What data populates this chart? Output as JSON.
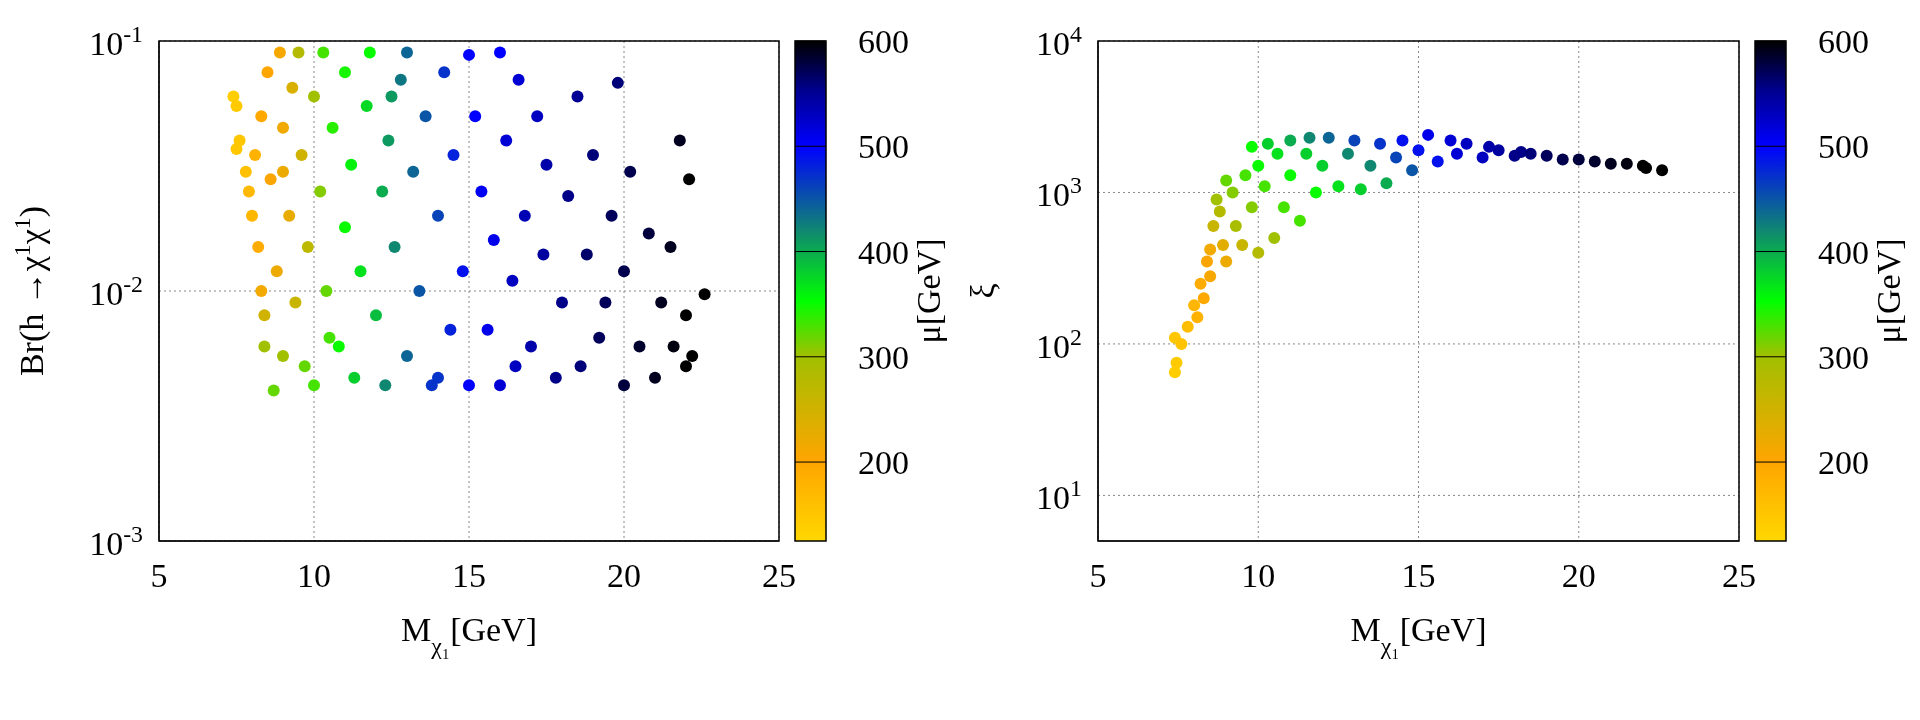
{
  "chart_data": [
    {
      "type": "scatter",
      "xlabel": "M$_{χ₁}$[GeV]",
      "ylabel": "Br(h →χ$^{1}$χ$^{1}$)",
      "clabel": "μ[GeV]",
      "xlim": [
        5,
        25
      ],
      "xticks": [
        5,
        10,
        15,
        20,
        25
      ],
      "ylim": [
        0.001,
        0.1
      ],
      "yticks": [
        {
          "value": 0.001,
          "label": "10$^{-3}$"
        },
        {
          "value": 0.01,
          "label": "10$^{-2}$"
        },
        {
          "value": 0.1,
          "label": "10$^{-1}$"
        }
      ],
      "log": "y",
      "grid": true,
      "marker": "circle",
      "clim": [
        125,
        600
      ],
      "cticks": [
        200,
        300,
        400,
        500,
        600
      ],
      "series": [
        {
          "x": [
            7.4,
            7.5,
            7.5,
            7.6,
            7.8,
            7.9,
            8.0,
            8.1,
            8.2,
            8.3,
            8.3,
            8.4,
            8.4,
            8.5,
            8.6,
            8.7,
            8.8,
            8.9,
            9.0,
            9.0,
            9.0,
            9.2,
            9.3,
            9.4,
            9.5,
            9.6,
            9.7,
            9.8,
            10.0,
            10.0,
            10.2,
            10.3,
            10.4,
            10.5,
            10.6,
            10.8,
            11.0,
            11.0,
            11.2,
            11.3,
            11.5,
            11.7,
            11.8,
            12.0,
            12.2,
            12.3,
            12.4,
            12.5,
            12.6,
            12.8,
            13.0,
            13.0,
            13.2,
            13.4,
            13.6,
            13.8,
            14.0,
            14.0,
            14.2,
            14.4,
            14.5,
            14.8,
            15.0,
            15.0,
            15.2,
            15.4,
            15.6,
            15.8,
            16.0,
            16.0,
            16.2,
            16.4,
            16.5,
            16.6,
            16.8,
            17.0,
            17.2,
            17.4,
            17.5,
            17.8,
            18.0,
            18.2,
            18.5,
            18.6,
            18.8,
            19.0,
            19.2,
            19.4,
            19.6,
            19.8,
            20.0,
            20.0,
            20.2,
            20.5,
            20.8,
            21.0,
            21.2,
            21.5,
            21.6,
            21.8,
            22.0,
            22.0,
            22.1,
            22.2,
            22.6
          ],
          "values": [
            0.06,
            0.055,
            0.037,
            0.04,
            0.03,
            0.025,
            0.02,
            0.035,
            0.015,
            0.05,
            0.01,
            0.008,
            0.006,
            0.075,
            0.028,
            0.004,
            0.012,
            0.09,
            0.045,
            0.0055,
            0.03,
            0.02,
            0.065,
            0.009,
            0.09,
            0.035,
            0.005,
            0.015,
            0.06,
            0.0042,
            0.025,
            0.09,
            0.01,
            0.0065,
            0.045,
            0.006,
            0.018,
            0.075,
            0.032,
            0.0045,
            0.012,
            0.055,
            0.09,
            0.008,
            0.025,
            0.0042,
            0.04,
            0.06,
            0.015,
            0.07,
            0.0055,
            0.09,
            0.03,
            0.01,
            0.05,
            0.0042,
            0.02,
            0.0045,
            0.075,
            0.007,
            0.035,
            0.012,
            0.088,
            0.0042,
            0.05,
            0.025,
            0.007,
            0.016,
            0.09,
            0.0042,
            0.04,
            0.011,
            0.005,
            0.07,
            0.02,
            0.006,
            0.05,
            0.014,
            0.032,
            0.0045,
            0.009,
            0.024,
            0.06,
            0.005,
            0.014,
            0.035,
            0.0065,
            0.009,
            0.02,
            0.068,
            0.0042,
            0.012,
            0.03,
            0.006,
            0.017,
            0.0045,
            0.009,
            0.015,
            0.006,
            0.04,
            0.005,
            0.008,
            0.028,
            0.0055,
            0.0097
          ],
          "cvalues": [
            140,
            145,
            150,
            150,
            160,
            170,
            175,
            180,
            190,
            195,
            215,
            250,
            300,
            200,
            205,
            320,
            220,
            210,
            215,
            300,
            220,
            225,
            240,
            260,
            280,
            250,
            320,
            270,
            300,
            330,
            310,
            330,
            320,
            330,
            340,
            350,
            350,
            345,
            360,
            380,
            370,
            375,
            350,
            390,
            400,
            420,
            410,
            410,
            420,
            430,
            440,
            440,
            440,
            450,
            450,
            470,
            460,
            470,
            470,
            480,
            480,
            490,
            500,
            500,
            500,
            505,
            510,
            510,
            500,
            520,
            520,
            530,
            530,
            520,
            535,
            540,
            530,
            545,
            540,
            555,
            555,
            555,
            550,
            560,
            565,
            560,
            570,
            570,
            570,
            560,
            580,
            575,
            575,
            585,
            580,
            590,
            590,
            590,
            595,
            590,
            600,
            600,
            600,
            600,
            600
          ]
        }
      ]
    },
    {
      "type": "scatter",
      "xlabel": "M$_{χ₁}$[GeV]",
      "ylabel": "ξ",
      "clabel": "μ[GeV]",
      "xlim": [
        5,
        25
      ],
      "xticks": [
        5,
        10,
        15,
        20,
        25
      ],
      "ylim": [
        5,
        10000
      ],
      "yticks": [
        {
          "value": 10,
          "label": "10$^{1}$"
        },
        {
          "value": 100,
          "label": "10$^{2}$"
        },
        {
          "value": 1000,
          "label": "10$^{3}$"
        },
        {
          "value": 10000,
          "label": "10$^{4}$"
        }
      ],
      "log": "y",
      "grid": true,
      "marker": "circle",
      "clim": [
        125,
        600
      ],
      "cticks": [
        200,
        300,
        400,
        500,
        600
      ],
      "series": [
        {
          "x": [
            7.4,
            7.45,
            7.4,
            7.6,
            7.8,
            8.0,
            8.1,
            8.2,
            8.3,
            8.4,
            8.5,
            8.5,
            8.6,
            8.7,
            8.8,
            8.9,
            9.0,
            9.0,
            9.2,
            9.3,
            9.5,
            9.6,
            9.8,
            9.8,
            10.0,
            10.0,
            10.2,
            10.3,
            10.5,
            10.6,
            10.8,
            11.0,
            11.0,
            11.3,
            11.5,
            11.6,
            11.8,
            12.0,
            12.2,
            12.5,
            12.8,
            13.0,
            13.2,
            13.5,
            13.8,
            14.0,
            14.3,
            14.5,
            14.8,
            15.0,
            15.3,
            15.6,
            16.0,
            16.2,
            16.5,
            17.0,
            17.2,
            17.5,
            18.0,
            18.2,
            18.5,
            19.0,
            19.5,
            20.0,
            20.5,
            21.0,
            21.5,
            22.0,
            22.1,
            22.6
          ],
          "values": [
            65,
            75,
            110,
            100,
            130,
            180,
            150,
            250,
            200,
            350,
            420,
            280,
            600,
            900,
            750,
            450,
            1200,
            350,
            1000,
            600,
            450,
            1300,
            2000,
            800,
            400,
            1500,
            1100,
            2100,
            500,
            1800,
            800,
            2200,
            1300,
            650,
            1800,
            2300,
            1000,
            1500,
            2300,
            1100,
            1800,
            2200,
            1050,
            1500,
            2100,
            1150,
            1700,
            2200,
            1400,
            1900,
            2400,
            1600,
            2200,
            1800,
            2100,
            1700,
            2000,
            1900,
            1750,
            1850,
            1800,
            1750,
            1650,
            1650,
            1600,
            1550,
            1550,
            1500,
            1450,
            1400
          ],
          "cvalues": [
            140,
            145,
            150,
            155,
            165,
            175,
            180,
            190,
            195,
            205,
            215,
            210,
            260,
            300,
            280,
            230,
            320,
            220,
            310,
            290,
            260,
            330,
            350,
            310,
            280,
            350,
            330,
            380,
            300,
            370,
            330,
            400,
            350,
            330,
            380,
            420,
            350,
            380,
            440,
            370,
            420,
            460,
            380,
            420,
            470,
            400,
            460,
            490,
            450,
            490,
            510,
            490,
            520,
            520,
            530,
            530,
            540,
            545,
            555,
            555,
            560,
            570,
            575,
            580,
            585,
            590,
            595,
            600,
            600,
            600
          ]
        }
      ]
    }
  ]
}
